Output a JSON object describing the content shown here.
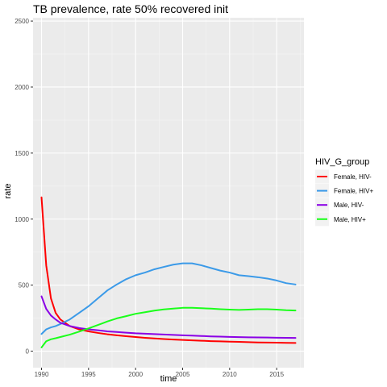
{
  "chart_data": {
    "type": "line",
    "title": "TB prevalence, rate 50% recovered init",
    "xlabel": "time",
    "ylabel": "rate",
    "xlim": [
      1989.1,
      2017.9
    ],
    "ylim": [
      -125,
      2525
    ],
    "x_ticks": [
      1990,
      1995,
      2000,
      2005,
      2010,
      2015
    ],
    "y_ticks": [
      0,
      500,
      1000,
      1500,
      2000,
      2500
    ],
    "grid": true,
    "legend": {
      "title": "HIV_G_group",
      "placement": "right"
    },
    "x": [
      1990,
      1990.5,
      1991,
      1991.5,
      1992,
      1993,
      1994,
      1995,
      1996,
      1997,
      1998,
      1999,
      2000,
      2001,
      2002,
      2003,
      2004,
      2005,
      2006,
      2007,
      2008,
      2009,
      2010,
      2011,
      2012,
      2013,
      2014,
      2015,
      2016,
      2017
    ],
    "series": [
      {
        "name": "Female, HIV-",
        "color": "#ff0000",
        "values": [
          1165,
          650,
          400,
          290,
          240,
          190,
          165,
          150,
          138,
          128,
          120,
          113,
          107,
          101,
          96,
          92,
          88,
          85,
          82,
          79,
          76,
          74,
          72,
          70,
          68,
          66,
          65,
          64,
          63,
          62
        ]
      },
      {
        "name": "Female, HIV+",
        "color": "#3b9ae8",
        "values": [
          130,
          165,
          180,
          190,
          205,
          240,
          290,
          340,
          400,
          460,
          505,
          545,
          575,
          595,
          620,
          638,
          655,
          665,
          665,
          650,
          630,
          610,
          595,
          575,
          568,
          560,
          550,
          535,
          515,
          505
        ]
      },
      {
        "name": "Male, HIV-",
        "color": "#8a00e6",
        "values": [
          415,
          320,
          270,
          240,
          215,
          190,
          175,
          165,
          158,
          150,
          145,
          140,
          135,
          132,
          129,
          126,
          123,
          120,
          118,
          115,
          112,
          110,
          108,
          106,
          105,
          104,
          103,
          102,
          101,
          100
        ]
      },
      {
        "name": "Male, HIV+",
        "color": "#1aff1a",
        "values": [
          28,
          75,
          90,
          98,
          107,
          125,
          148,
          172,
          198,
          225,
          248,
          265,
          283,
          295,
          307,
          316,
          322,
          328,
          328,
          325,
          322,
          318,
          315,
          312,
          315,
          318,
          318,
          315,
          310,
          308
        ]
      }
    ]
  }
}
